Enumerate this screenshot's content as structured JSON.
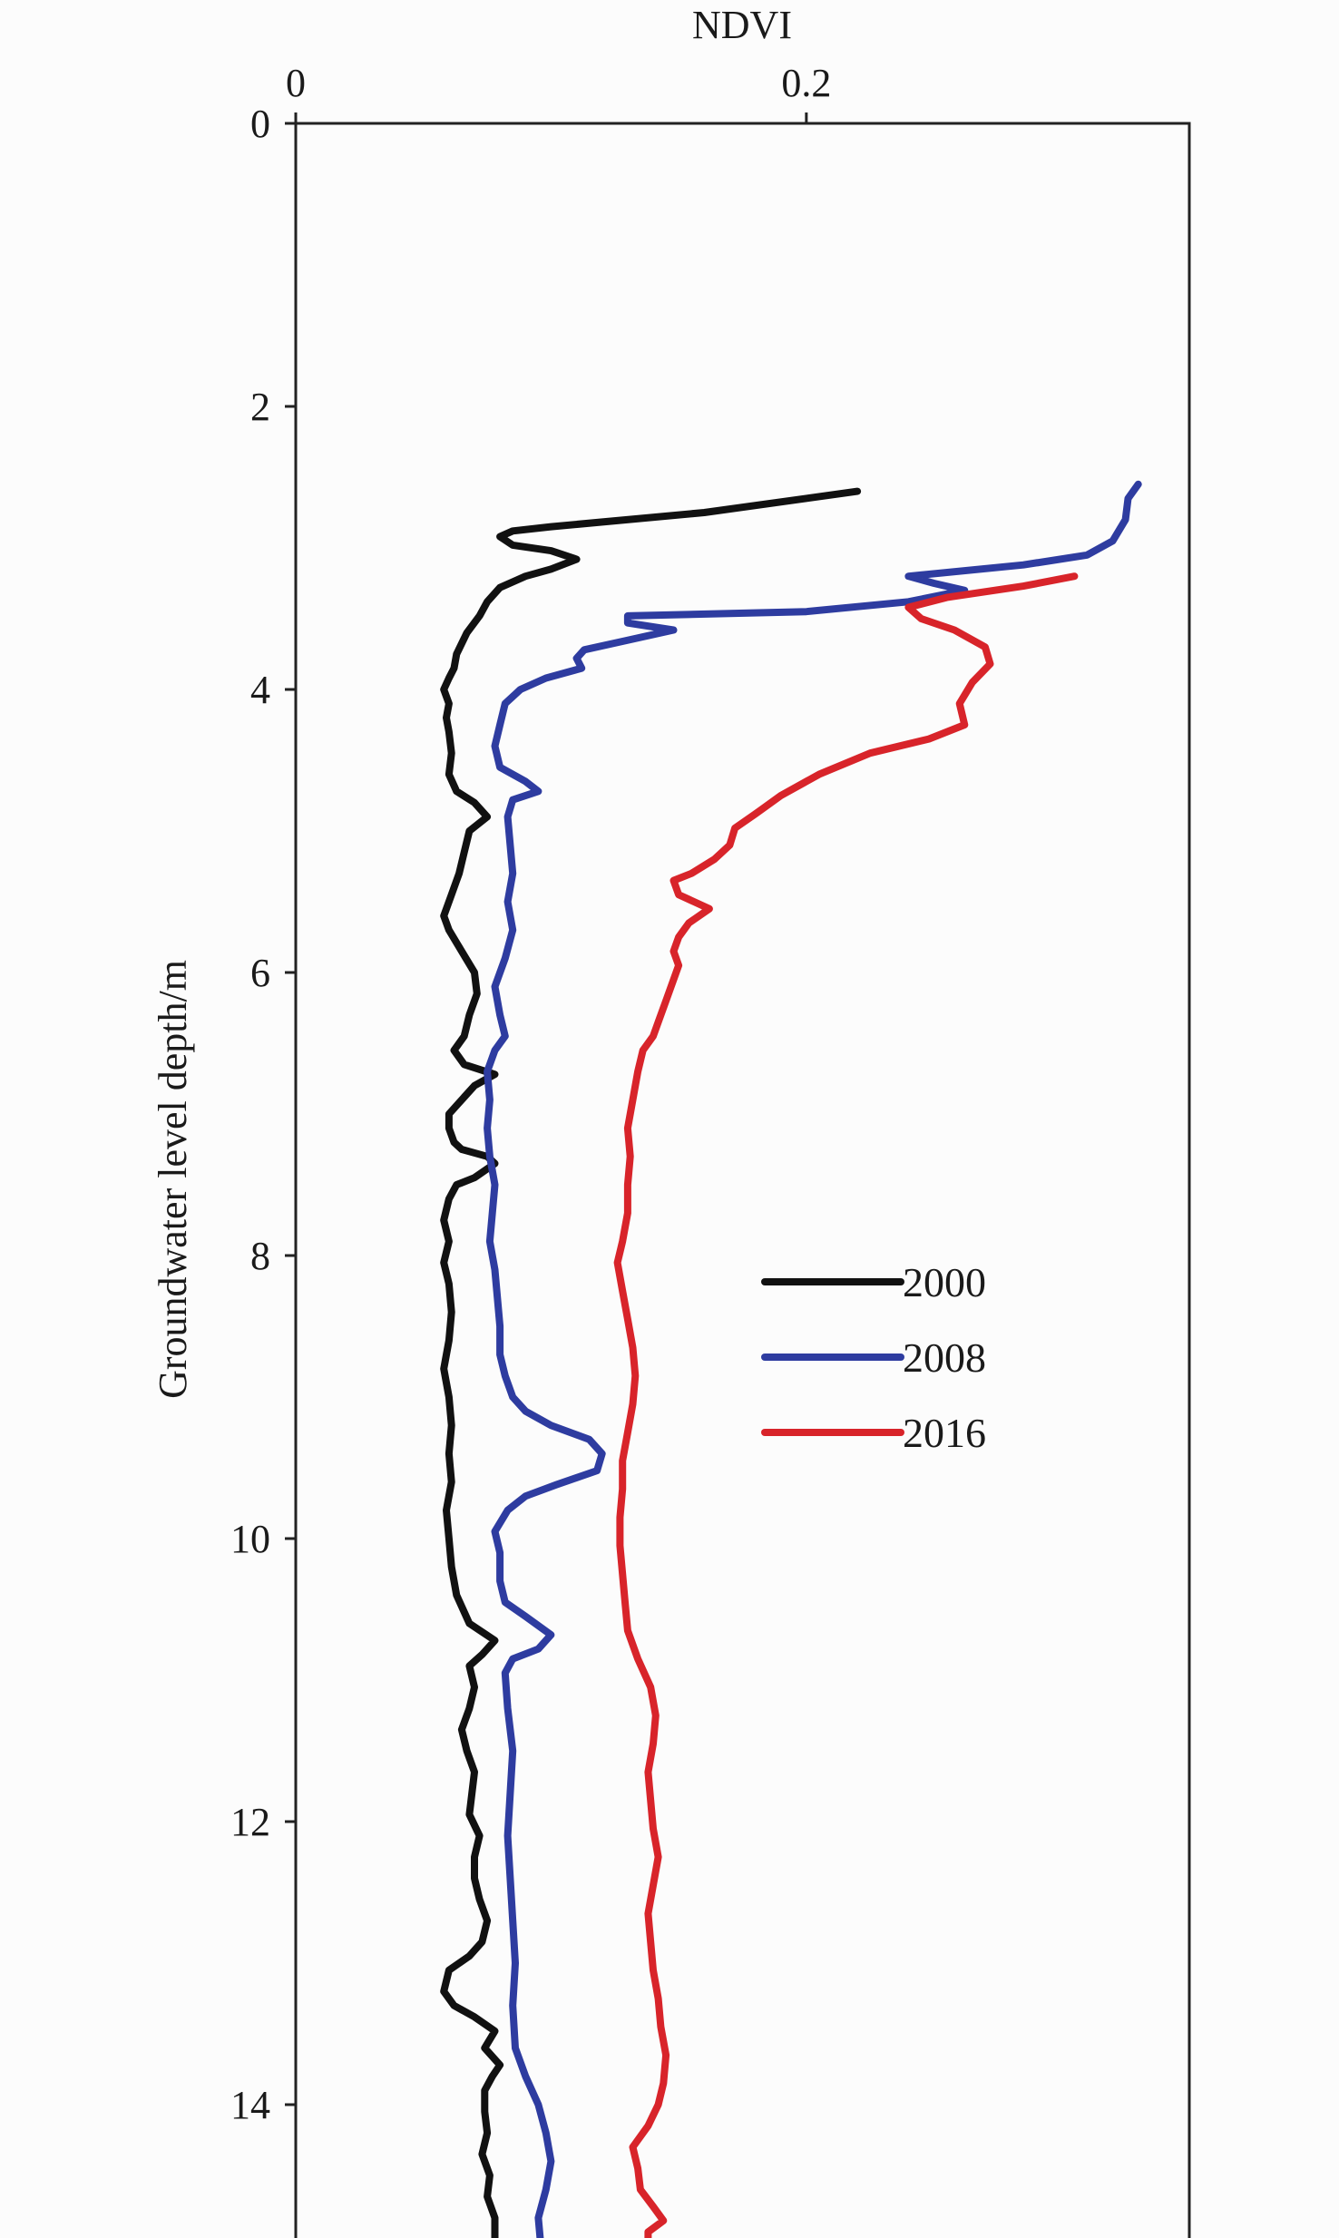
{
  "chart_data": {
    "type": "line",
    "title": "",
    "xlabel": "NDVI",
    "ylabel": "Groundwater level depth/m",
    "xlim": [
      0,
      0.35
    ],
    "ylim": [
      15,
      0
    ],
    "x_axis_position": "top",
    "x_ticks": [
      0,
      0.2
    ],
    "x_tick_labels": [
      "0",
      "0.2"
    ],
    "y_ticks": [
      0,
      2,
      4,
      6,
      8,
      10,
      12,
      14
    ],
    "y_tick_labels": [
      "0",
      "2",
      "4",
      "6",
      "8",
      "10",
      "12",
      "14"
    ],
    "grid": false,
    "legend_position": "center-right",
    "series": [
      {
        "name": "2000",
        "color": "#111111",
        "points": [
          [
            0.22,
            2.6
          ],
          [
            0.16,
            2.75
          ],
          [
            0.1,
            2.85
          ],
          [
            0.085,
            2.88
          ],
          [
            0.08,
            2.92
          ],
          [
            0.085,
            2.98
          ],
          [
            0.1,
            3.02
          ],
          [
            0.11,
            3.08
          ],
          [
            0.1,
            3.15
          ],
          [
            0.09,
            3.2
          ],
          [
            0.08,
            3.28
          ],
          [
            0.075,
            3.38
          ],
          [
            0.072,
            3.48
          ],
          [
            0.067,
            3.6
          ],
          [
            0.063,
            3.75
          ],
          [
            0.062,
            3.85
          ],
          [
            0.06,
            3.92
          ],
          [
            0.058,
            4.0
          ],
          [
            0.06,
            4.1
          ],
          [
            0.059,
            4.2
          ],
          [
            0.06,
            4.3
          ],
          [
            0.061,
            4.45
          ],
          [
            0.06,
            4.6
          ],
          [
            0.063,
            4.72
          ],
          [
            0.07,
            4.8
          ],
          [
            0.075,
            4.9
          ],
          [
            0.068,
            5.0
          ],
          [
            0.066,
            5.15
          ],
          [
            0.064,
            5.3
          ],
          [
            0.061,
            5.45
          ],
          [
            0.058,
            5.6
          ],
          [
            0.06,
            5.7
          ],
          [
            0.065,
            5.85
          ],
          [
            0.07,
            6.0
          ],
          [
            0.071,
            6.15
          ],
          [
            0.068,
            6.3
          ],
          [
            0.066,
            6.45
          ],
          [
            0.062,
            6.55
          ],
          [
            0.066,
            6.65
          ],
          [
            0.078,
            6.72
          ],
          [
            0.07,
            6.8
          ],
          [
            0.065,
            6.9
          ],
          [
            0.06,
            7.0
          ],
          [
            0.06,
            7.1
          ],
          [
            0.062,
            7.2
          ],
          [
            0.065,
            7.25
          ],
          [
            0.075,
            7.3
          ],
          [
            0.078,
            7.35
          ],
          [
            0.07,
            7.45
          ],
          [
            0.063,
            7.5
          ],
          [
            0.06,
            7.6
          ],
          [
            0.058,
            7.75
          ],
          [
            0.06,
            7.9
          ],
          [
            0.058,
            8.05
          ],
          [
            0.06,
            8.2
          ],
          [
            0.061,
            8.4
          ],
          [
            0.06,
            8.6
          ],
          [
            0.058,
            8.8
          ],
          [
            0.06,
            9.0
          ],
          [
            0.061,
            9.2
          ],
          [
            0.06,
            9.4
          ],
          [
            0.061,
            9.6
          ],
          [
            0.059,
            9.8
          ],
          [
            0.06,
            10.0
          ],
          [
            0.061,
            10.2
          ],
          [
            0.063,
            10.4
          ],
          [
            0.068,
            10.6
          ],
          [
            0.078,
            10.72
          ],
          [
            0.073,
            10.82
          ],
          [
            0.068,
            10.9
          ],
          [
            0.07,
            11.05
          ],
          [
            0.068,
            11.2
          ],
          [
            0.065,
            11.35
          ],
          [
            0.067,
            11.5
          ],
          [
            0.07,
            11.65
          ],
          [
            0.069,
            11.8
          ],
          [
            0.068,
            11.95
          ],
          [
            0.072,
            12.1
          ],
          [
            0.07,
            12.25
          ],
          [
            0.07,
            12.4
          ],
          [
            0.072,
            12.55
          ],
          [
            0.075,
            12.7
          ],
          [
            0.073,
            12.85
          ],
          [
            0.068,
            12.95
          ],
          [
            0.06,
            13.05
          ],
          [
            0.058,
            13.2
          ],
          [
            0.062,
            13.3
          ],
          [
            0.07,
            13.38
          ],
          [
            0.078,
            13.48
          ],
          [
            0.074,
            13.6
          ],
          [
            0.08,
            13.72
          ],
          [
            0.077,
            13.8
          ],
          [
            0.074,
            13.9
          ],
          [
            0.074,
            14.05
          ],
          [
            0.075,
            14.2
          ],
          [
            0.073,
            14.35
          ],
          [
            0.076,
            14.5
          ],
          [
            0.075,
            14.65
          ],
          [
            0.078,
            14.8
          ],
          [
            0.078,
            15.0
          ]
        ]
      },
      {
        "name": "2008",
        "color": "#2e3ca0",
        "points": [
          [
            0.33,
            2.55
          ],
          [
            0.326,
            2.65
          ],
          [
            0.325,
            2.8
          ],
          [
            0.32,
            2.95
          ],
          [
            0.31,
            3.05
          ],
          [
            0.285,
            3.12
          ],
          [
            0.24,
            3.2
          ],
          [
            0.25,
            3.25
          ],
          [
            0.262,
            3.3
          ],
          [
            0.24,
            3.38
          ],
          [
            0.2,
            3.45
          ],
          [
            0.13,
            3.48
          ],
          [
            0.13,
            3.53
          ],
          [
            0.148,
            3.58
          ],
          [
            0.128,
            3.66
          ],
          [
            0.113,
            3.72
          ],
          [
            0.11,
            3.78
          ],
          [
            0.112,
            3.85
          ],
          [
            0.098,
            3.92
          ],
          [
            0.088,
            4.0
          ],
          [
            0.082,
            4.1
          ],
          [
            0.08,
            4.25
          ],
          [
            0.078,
            4.4
          ],
          [
            0.08,
            4.55
          ],
          [
            0.09,
            4.65
          ],
          [
            0.095,
            4.72
          ],
          [
            0.085,
            4.78
          ],
          [
            0.083,
            4.9
          ],
          [
            0.084,
            5.1
          ],
          [
            0.085,
            5.3
          ],
          [
            0.083,
            5.5
          ],
          [
            0.085,
            5.7
          ],
          [
            0.082,
            5.9
          ],
          [
            0.078,
            6.1
          ],
          [
            0.08,
            6.3
          ],
          [
            0.082,
            6.45
          ],
          [
            0.078,
            6.55
          ],
          [
            0.075,
            6.7
          ],
          [
            0.076,
            6.9
          ],
          [
            0.075,
            7.1
          ],
          [
            0.076,
            7.3
          ],
          [
            0.078,
            7.5
          ],
          [
            0.077,
            7.7
          ],
          [
            0.076,
            7.9
          ],
          [
            0.078,
            8.1
          ],
          [
            0.079,
            8.3
          ],
          [
            0.08,
            8.5
          ],
          [
            0.08,
            8.7
          ],
          [
            0.082,
            8.85
          ],
          [
            0.085,
            9.0
          ],
          [
            0.09,
            9.1
          ],
          [
            0.1,
            9.2
          ],
          [
            0.115,
            9.3
          ],
          [
            0.12,
            9.4
          ],
          [
            0.118,
            9.52
          ],
          [
            0.102,
            9.62
          ],
          [
            0.09,
            9.7
          ],
          [
            0.083,
            9.8
          ],
          [
            0.078,
            9.95
          ],
          [
            0.08,
            10.1
          ],
          [
            0.08,
            10.3
          ],
          [
            0.082,
            10.45
          ],
          [
            0.09,
            10.55
          ],
          [
            0.1,
            10.68
          ],
          [
            0.095,
            10.78
          ],
          [
            0.085,
            10.85
          ],
          [
            0.082,
            10.95
          ],
          [
            0.083,
            11.2
          ],
          [
            0.085,
            11.5
          ],
          [
            0.084,
            11.8
          ],
          [
            0.083,
            12.1
          ],
          [
            0.084,
            12.4
          ],
          [
            0.085,
            12.7
          ],
          [
            0.086,
            13.0
          ],
          [
            0.085,
            13.3
          ],
          [
            0.086,
            13.6
          ],
          [
            0.09,
            13.8
          ],
          [
            0.095,
            14.0
          ],
          [
            0.098,
            14.2
          ],
          [
            0.1,
            14.4
          ],
          [
            0.098,
            14.6
          ],
          [
            0.095,
            14.8
          ],
          [
            0.096,
            15.0
          ]
        ]
      },
      {
        "name": "2016",
        "color": "#d8242a",
        "points": [
          [
            0.305,
            3.2
          ],
          [
            0.285,
            3.27
          ],
          [
            0.255,
            3.35
          ],
          [
            0.24,
            3.42
          ],
          [
            0.245,
            3.5
          ],
          [
            0.258,
            3.58
          ],
          [
            0.27,
            3.7
          ],
          [
            0.272,
            3.82
          ],
          [
            0.265,
            3.95
          ],
          [
            0.26,
            4.1
          ],
          [
            0.262,
            4.25
          ],
          [
            0.248,
            4.35
          ],
          [
            0.225,
            4.45
          ],
          [
            0.205,
            4.6
          ],
          [
            0.19,
            4.75
          ],
          [
            0.18,
            4.88
          ],
          [
            0.172,
            4.98
          ],
          [
            0.17,
            5.1
          ],
          [
            0.164,
            5.2
          ],
          [
            0.155,
            5.3
          ],
          [
            0.148,
            5.35
          ],
          [
            0.15,
            5.45
          ],
          [
            0.162,
            5.55
          ],
          [
            0.154,
            5.65
          ],
          [
            0.15,
            5.75
          ],
          [
            0.148,
            5.85
          ],
          [
            0.15,
            5.95
          ],
          [
            0.148,
            6.05
          ],
          [
            0.145,
            6.2
          ],
          [
            0.142,
            6.35
          ],
          [
            0.14,
            6.45
          ],
          [
            0.136,
            6.55
          ],
          [
            0.134,
            6.7
          ],
          [
            0.132,
            6.9
          ],
          [
            0.13,
            7.1
          ],
          [
            0.131,
            7.3
          ],
          [
            0.13,
            7.5
          ],
          [
            0.13,
            7.7
          ],
          [
            0.128,
            7.9
          ],
          [
            0.126,
            8.05
          ],
          [
            0.128,
            8.25
          ],
          [
            0.13,
            8.45
          ],
          [
            0.132,
            8.65
          ],
          [
            0.133,
            8.85
          ],
          [
            0.132,
            9.05
          ],
          [
            0.13,
            9.25
          ],
          [
            0.128,
            9.45
          ],
          [
            0.128,
            9.65
          ],
          [
            0.127,
            9.85
          ],
          [
            0.127,
            10.05
          ],
          [
            0.128,
            10.25
          ],
          [
            0.129,
            10.45
          ],
          [
            0.13,
            10.65
          ],
          [
            0.134,
            10.85
          ],
          [
            0.139,
            11.05
          ],
          [
            0.141,
            11.25
          ],
          [
            0.14,
            11.45
          ],
          [
            0.138,
            11.65
          ],
          [
            0.139,
            11.85
          ],
          [
            0.14,
            12.05
          ],
          [
            0.142,
            12.25
          ],
          [
            0.14,
            12.45
          ],
          [
            0.138,
            12.65
          ],
          [
            0.139,
            12.85
          ],
          [
            0.14,
            13.05
          ],
          [
            0.142,
            13.25
          ],
          [
            0.143,
            13.45
          ],
          [
            0.145,
            13.65
          ],
          [
            0.144,
            13.85
          ],
          [
            0.142,
            14.0
          ],
          [
            0.138,
            14.15
          ],
          [
            0.132,
            14.3
          ],
          [
            0.134,
            14.45
          ],
          [
            0.135,
            14.6
          ],
          [
            0.14,
            14.72
          ],
          [
            0.144,
            14.82
          ],
          [
            0.138,
            14.9
          ],
          [
            0.138,
            15.0
          ]
        ]
      }
    ]
  }
}
